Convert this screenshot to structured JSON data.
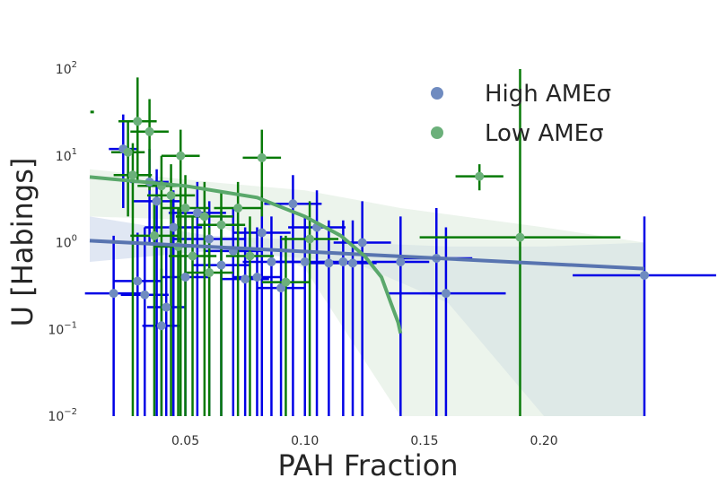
{
  "chart_data": {
    "type": "scatter",
    "title": "",
    "xlabel": "PAH Fraction",
    "ylabel": "U [Habings]",
    "xscale": "linear",
    "yscale": "log",
    "xlim": [
      0.01,
      0.242
    ],
    "ylim": [
      0.01,
      100
    ],
    "grid": false,
    "legend_position": "top-right",
    "x_ticks": [
      {
        "value": 0.05,
        "label": "0.05"
      },
      {
        "value": 0.1,
        "label": "0.10"
      },
      {
        "value": 0.15,
        "label": "0.15"
      },
      {
        "value": 0.2,
        "label": "0.20"
      }
    ],
    "y_ticks": [
      {
        "value": 0.01,
        "base": "10",
        "exp": "−2"
      },
      {
        "value": 0.1,
        "base": "10",
        "exp": "−1"
      },
      {
        "value": 1,
        "base": "10",
        "exp": "0"
      },
      {
        "value": 10,
        "base": "10",
        "exp": "1"
      },
      {
        "value": 100,
        "base": "10",
        "exp": "2"
      }
    ],
    "series": [
      {
        "name": "High AMEσ",
        "marker_color": "#6f8bc0",
        "errorbar_color": "#0000e6",
        "points": [
          {
            "x": 0.02,
            "y": 0.26,
            "xerr": 0.012,
            "ylo": 0.01,
            "yhi": 1.2
          },
          {
            "x": 0.03,
            "y": 0.36,
            "xerr": 0.01,
            "ylo": 0.01,
            "yhi": 1.3
          },
          {
            "x": 0.04,
            "y": 0.11,
            "xerr": 0.008,
            "ylo": 0.01,
            "yhi": 0.5
          },
          {
            "x": 0.042,
            "y": 0.18,
            "xerr": 0.008,
            "ylo": 0.01,
            "yhi": 0.9
          },
          {
            "x": 0.033,
            "y": 0.25,
            "xerr": 0.01,
            "ylo": 0.01,
            "yhi": 1.5
          },
          {
            "x": 0.05,
            "y": 0.4,
            "xerr": 0.01,
            "ylo": 0.01,
            "yhi": 2.0
          },
          {
            "x": 0.024,
            "y": 12.0,
            "xerr": 0.006,
            "ylo": 2.5,
            "yhi": 30
          },
          {
            "x": 0.038,
            "y": 3.0,
            "xerr": 0.01,
            "ylo": 0.01,
            "yhi": 7.0
          },
          {
            "x": 0.045,
            "y": 1.5,
            "xerr": 0.012,
            "ylo": 0.01,
            "yhi": 4.0
          },
          {
            "x": 0.055,
            "y": 2.2,
            "xerr": 0.012,
            "ylo": 0.01,
            "yhi": 5.0
          },
          {
            "x": 0.06,
            "y": 1.1,
            "xerr": 0.015,
            "ylo": 0.01,
            "yhi": 3.0
          },
          {
            "x": 0.065,
            "y": 0.55,
            "xerr": 0.012,
            "ylo": 0.01,
            "yhi": 2.0
          },
          {
            "x": 0.07,
            "y": 0.8,
            "xerr": 0.012,
            "ylo": 0.01,
            "yhi": 2.5
          },
          {
            "x": 0.075,
            "y": 0.38,
            "xerr": 0.01,
            "ylo": 0.01,
            "yhi": 1.5
          },
          {
            "x": 0.08,
            "y": 0.4,
            "xerr": 0.01,
            "ylo": 0.01,
            "yhi": 1.5
          },
          {
            "x": 0.082,
            "y": 1.3,
            "xerr": 0.012,
            "ylo": 0.01,
            "yhi": 3.5
          },
          {
            "x": 0.086,
            "y": 0.6,
            "xerr": 0.012,
            "ylo": 0.01,
            "yhi": 2.0
          },
          {
            "x": 0.09,
            "y": 0.3,
            "xerr": 0.01,
            "ylo": 0.01,
            "yhi": 1.2
          },
          {
            "x": 0.095,
            "y": 2.8,
            "xerr": 0.012,
            "ylo": 0.01,
            "yhi": 6.0
          },
          {
            "x": 0.1,
            "y": 0.6,
            "xerr": 0.012,
            "ylo": 0.01,
            "yhi": 2.0
          },
          {
            "x": 0.105,
            "y": 1.5,
            "xerr": 0.012,
            "ylo": 0.01,
            "yhi": 4.0
          },
          {
            "x": 0.11,
            "y": 0.58,
            "xerr": 0.01,
            "ylo": 0.01,
            "yhi": 1.8
          },
          {
            "x": 0.116,
            "y": 0.6,
            "xerr": 0.01,
            "ylo": 0.01,
            "yhi": 1.8
          },
          {
            "x": 0.12,
            "y": 0.58,
            "xerr": 0.01,
            "ylo": 0.01,
            "yhi": 1.8
          },
          {
            "x": 0.124,
            "y": 1.0,
            "xerr": 0.012,
            "ylo": 0.01,
            "yhi": 3.0
          },
          {
            "x": 0.14,
            "y": 0.6,
            "xerr": 0.012,
            "ylo": 0.01,
            "yhi": 2.0
          },
          {
            "x": 0.155,
            "y": 0.66,
            "xerr": 0.015,
            "ylo": 0.01,
            "yhi": 2.5
          },
          {
            "x": 0.159,
            "y": 0.26,
            "xerr": 0.025,
            "ylo": 0.01,
            "yhi": 1.5
          },
          {
            "x": 0.242,
            "y": 0.42,
            "xerr": 0.03,
            "ylo": 0.01,
            "yhi": 2.0
          },
          {
            "x": 0.035,
            "y": 5.0,
            "xerr": 0.008,
            "ylo": 1.0,
            "yhi": 12
          }
        ]
      },
      {
        "name": "Low AMEσ",
        "marker_color": "#6bb07a",
        "errorbar_color": "#087a08",
        "points": [
          {
            "x": 0.03,
            "y": 25.0,
            "xerr": 0.008,
            "ylo": 5.0,
            "yhi": 80
          },
          {
            "x": 0.035,
            "y": 19.0,
            "xerr": 0.008,
            "ylo": 4.0,
            "yhi": 45
          },
          {
            "x": 0.026,
            "y": 11.0,
            "xerr": 0.007,
            "ylo": 2.0,
            "yhi": 25
          },
          {
            "x": 0.048,
            "y": 10.0,
            "xerr": 0.008,
            "ylo": 0.01,
            "yhi": 20
          },
          {
            "x": 0.082,
            "y": 9.5,
            "xerr": 0.008,
            "ylo": 2.0,
            "yhi": 20
          },
          {
            "x": 0.028,
            "y": 6.0,
            "xerr": 0.008,
            "ylo": 0.01,
            "yhi": 14
          },
          {
            "x": 0.04,
            "y": 4.5,
            "xerr": 0.01,
            "ylo": 0.01,
            "yhi": 10
          },
          {
            "x": 0.044,
            "y": 3.5,
            "xerr": 0.01,
            "ylo": 0.01,
            "yhi": 8
          },
          {
            "x": 0.05,
            "y": 2.5,
            "xerr": 0.01,
            "ylo": 0.01,
            "yhi": 6
          },
          {
            "x": 0.058,
            "y": 2.0,
            "xerr": 0.012,
            "ylo": 0.01,
            "yhi": 5
          },
          {
            "x": 0.065,
            "y": 1.6,
            "xerr": 0.01,
            "ylo": 0.01,
            "yhi": 4
          },
          {
            "x": 0.072,
            "y": 2.5,
            "xerr": 0.01,
            "ylo": 0.01,
            "yhi": 5
          },
          {
            "x": 0.037,
            "y": 1.2,
            "xerr": 0.01,
            "ylo": 0.01,
            "yhi": 3
          },
          {
            "x": 0.047,
            "y": 0.9,
            "xerr": 0.01,
            "ylo": 0.01,
            "yhi": 2.5
          },
          {
            "x": 0.053,
            "y": 0.7,
            "xerr": 0.01,
            "ylo": 0.01,
            "yhi": 2
          },
          {
            "x": 0.06,
            "y": 0.45,
            "xerr": 0.01,
            "ylo": 0.01,
            "yhi": 1.5
          },
          {
            "x": 0.092,
            "y": 0.35,
            "xerr": 0.01,
            "ylo": 0.01,
            "yhi": 1.2
          },
          {
            "x": 0.102,
            "y": 1.1,
            "xerr": 0.012,
            "ylo": 0.01,
            "yhi": 3
          },
          {
            "x": 0.173,
            "y": 5.8,
            "xerr": 0.01,
            "ylo": 4.0,
            "yhi": 8
          },
          {
            "x": 0.19,
            "y": 1.15,
            "xerr": 0.042,
            "ylo": 0.01,
            "yhi": 100
          },
          {
            "x": 0.077,
            "y": 0.7,
            "xerr": 0.01,
            "ylo": 0.01,
            "yhi": 2
          }
        ]
      }
    ],
    "fits": [
      {
        "series": "High AMEσ",
        "color": "#5874b0",
        "line": [
          {
            "x": 0.01,
            "y": 1.05
          },
          {
            "x": 0.242,
            "y": 0.5
          }
        ],
        "band_color": "#c7d3ea",
        "band": [
          {
            "x": 0.01,
            "lo": 0.6,
            "hi": 2.0
          },
          {
            "x": 0.06,
            "lo": 0.8,
            "hi": 1.2
          },
          {
            "x": 0.12,
            "lo": 0.6,
            "hi": 1.0
          },
          {
            "x": 0.16,
            "lo": 0.2,
            "hi": 0.9
          },
          {
            "x": 0.2,
            "lo": 0.01,
            "hi": 0.9
          },
          {
            "x": 0.242,
            "lo": 0.01,
            "hi": 1.0
          }
        ]
      },
      {
        "series": "Low AMEσ",
        "color": "#5aa86b",
        "line": [
          {
            "x": 0.01,
            "y": 5.7
          },
          {
            "x": 0.05,
            "y": 4.5
          },
          {
            "x": 0.08,
            "y": 3.3
          },
          {
            "x": 0.1,
            "y": 2.0
          },
          {
            "x": 0.115,
            "y": 1.2
          },
          {
            "x": 0.125,
            "y": 0.7
          },
          {
            "x": 0.132,
            "y": 0.4
          },
          {
            "x": 0.136,
            "y": 0.2
          },
          {
            "x": 0.139,
            "y": 0.12
          },
          {
            "x": 0.14,
            "y": 0.09
          }
        ],
        "band_color": "#dcebdd",
        "band": [
          {
            "x": 0.01,
            "lo": 2.0,
            "hi": 7.0
          },
          {
            "x": 0.06,
            "lo": 1.8,
            "hi": 5.0
          },
          {
            "x": 0.1,
            "lo": 0.5,
            "hi": 4.0
          },
          {
            "x": 0.14,
            "lo": 0.01,
            "hi": 2.5
          },
          {
            "x": 0.2,
            "lo": 0.01,
            "hi": 1.5
          },
          {
            "x": 0.242,
            "lo": 0.01,
            "hi": 1.0
          }
        ]
      }
    ],
    "stray_marks": [
      {
        "x": 0.011,
        "y": 32,
        "color": "#087a08"
      }
    ]
  }
}
